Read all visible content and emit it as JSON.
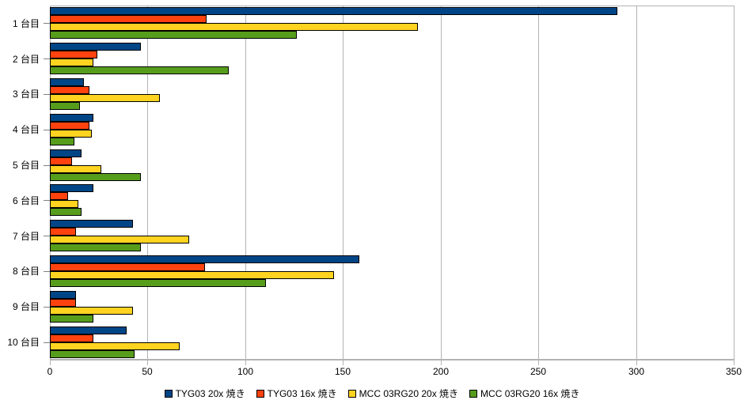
{
  "chart_data": {
    "type": "bar",
    "orientation": "horizontal",
    "title": "",
    "xlabel": "",
    "ylabel": "",
    "xlim": [
      0,
      350
    ],
    "x_ticks": [
      0,
      50,
      100,
      150,
      200,
      250,
      300,
      350
    ],
    "grid": true,
    "legend_position": "bottom",
    "categories": [
      "1 台目",
      "2 台目",
      "3 台目",
      "4 台目",
      "5 台目",
      "6 台目",
      "7 台目",
      "8 台目",
      "9 台目",
      "10 台目"
    ],
    "series": [
      {
        "name": "TYG03 20x 焼き",
        "color": "#004586",
        "values": [
          290,
          46,
          17,
          22,
          16,
          22,
          42,
          158,
          13,
          39
        ]
      },
      {
        "name": "TYG03 16x 焼き",
        "color": "#FF420E",
        "values": [
          80,
          24,
          20,
          20,
          11,
          9,
          13,
          79,
          13,
          22
        ]
      },
      {
        "name": "MCC 03RG20 20x 焼き",
        "color": "#FFD320",
        "values": [
          188,
          22,
          56,
          21,
          26,
          14,
          71,
          145,
          42,
          66
        ]
      },
      {
        "name": "MCC 03RG20 16x 焼き",
        "color": "#579D1C",
        "values": [
          126,
          91,
          15,
          12,
          46,
          16,
          46,
          110,
          22,
          43
        ]
      }
    ],
    "colors": {
      "background": "#ffffff",
      "gridline": "#b3b3b3",
      "axis_line": "#b3b3b3",
      "category_tick": "#808080",
      "bar_border": "#000000",
      "text": "#000000"
    }
  }
}
